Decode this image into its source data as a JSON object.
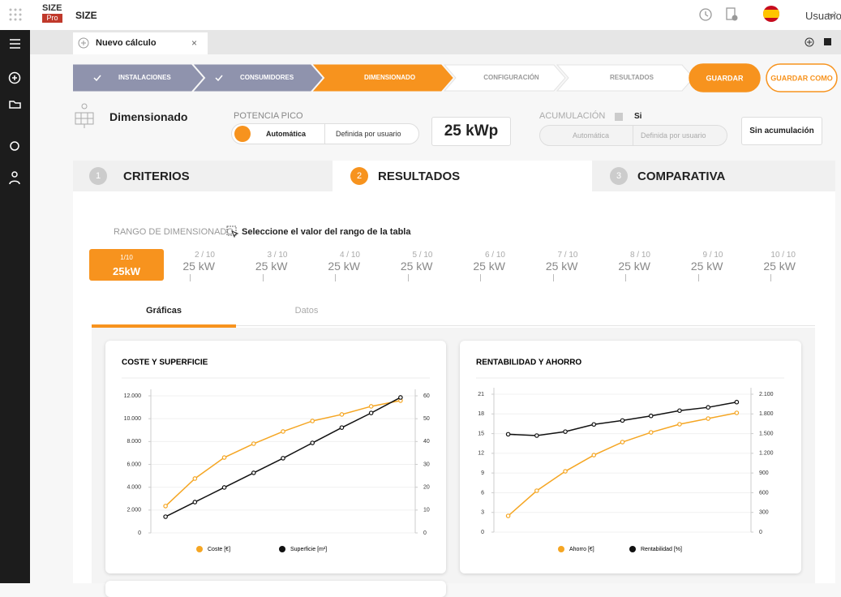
{
  "topbar": {
    "logo": "SIZE",
    "logo_badge": "Pro",
    "app": "SIZE",
    "user": "Usuario"
  },
  "tab": {
    "title": "Nuevo cálculo",
    "close": "×"
  },
  "steps": [
    "INSTALACIONES",
    "CONSUMIDORES",
    "DIMENSIONADO",
    "CONFIGURACIÓN",
    "RESULTADOS"
  ],
  "buttons": {
    "save": "GUARDAR",
    "save_as": "GUARDAR COMO"
  },
  "section": {
    "title": "Dimensionado",
    "power_label": "POTENCIA PICO",
    "power_auto": "Automática",
    "power_user": "Definida por usuario",
    "power_value": "25 kWp",
    "acc_label": "ACUMULACIÓN",
    "acc_check": "Si",
    "acc_auto": "Automática",
    "acc_user": "Definida por usuario",
    "acc_button": "Sin acumulación"
  },
  "result_tabs": [
    {
      "num": "1",
      "label": "CRITERIOS"
    },
    {
      "num": "2",
      "label": "RESULTADOS"
    },
    {
      "num": "3",
      "label": "COMPARATIVA"
    }
  ],
  "range": {
    "label": "RANGO DE DIMENSIONADO",
    "hint": "Seleccione el valor del rango de la tabla",
    "options": [
      {
        "index": "1/10",
        "value": "25kW"
      },
      {
        "index": "2 / 10",
        "value": "25 kW"
      },
      {
        "index": "3 / 10",
        "value": "25 kW"
      },
      {
        "index": "4 / 10",
        "value": "25 kW"
      },
      {
        "index": "5 / 10",
        "value": "25 kW"
      },
      {
        "index": "6 / 10",
        "value": "25 kW"
      },
      {
        "index": "7 / 10",
        "value": "25 kW"
      },
      {
        "index": "8 / 10",
        "value": "25 kW"
      },
      {
        "index": "9 / 10",
        "value": "25 kW"
      },
      {
        "index": "10 / 10",
        "value": "25 kW"
      }
    ]
  },
  "subtabs": [
    "Gráficas",
    "Datos"
  ],
  "chart_data": [
    {
      "type": "line",
      "title": "COSTE Y SUPERFICIE",
      "categories": [
        null,
        null,
        null,
        null,
        null,
        null,
        null,
        null,
        null
      ],
      "series": [
        {
          "name": "Coste [€]",
          "color": "#f5a623",
          "values": [
            2350,
            4760,
            6600,
            7810,
            8880,
            9800,
            10370,
            11080,
            11580
          ]
        },
        {
          "name": "Superficie [m²]",
          "color": "#111111",
          "axis": "y2",
          "values": [
            7.1,
            13.5,
            19.9,
            26.3,
            32.7,
            39.4,
            46.1,
            52.5,
            59.3
          ]
        }
      ],
      "ylim": [
        0,
        12000
      ],
      "yticks": [
        0,
        {
          "value": 2000,
          "label": "2.000"
        },
        {
          "value": 4000,
          "label": "4.000"
        },
        {
          "value": 6000,
          "label": "6.000"
        },
        {
          "value": 8000,
          "label": "8.000"
        },
        {
          "value": 10000,
          "label": "10.000"
        },
        {
          "value": 12000,
          "label": "12.000"
        }
      ],
      "y2lim": [
        0,
        60
      ],
      "y2ticks": [
        0,
        10,
        20,
        30,
        40,
        50,
        60
      ],
      "grid": true
    },
    {
      "type": "line",
      "title": "RENTABILIDAD Y AHORRO",
      "categories": [
        null,
        null,
        null,
        null,
        null,
        null,
        null,
        null,
        null
      ],
      "series": [
        {
          "name": "Ahorro [€]",
          "color": "#f5a623",
          "axis": "y2",
          "values": [
            247,
            630,
            926,
            1173,
            1371,
            1519,
            1643,
            1729,
            1816
          ]
        },
        {
          "name": "Rentabilidad [%]",
          "color": "#111111",
          "values": [
            14.9,
            14.7,
            15.3,
            16.4,
            17.0,
            17.7,
            18.5,
            19.0,
            19.8
          ]
        }
      ],
      "ylim": [
        0,
        21
      ],
      "yticks": [
        0,
        3,
        6,
        9,
        12,
        15,
        18,
        21
      ],
      "y2lim": [
        0,
        2100
      ],
      "y2ticks": [
        0,
        300,
        600,
        900,
        {
          "value": 1200,
          "label": "1.200"
        },
        {
          "value": 1500,
          "label": "1.500"
        },
        {
          "value": 1800,
          "label": "1.800"
        },
        {
          "value": 2100,
          "label": "2.100"
        }
      ],
      "grid": true
    }
  ]
}
